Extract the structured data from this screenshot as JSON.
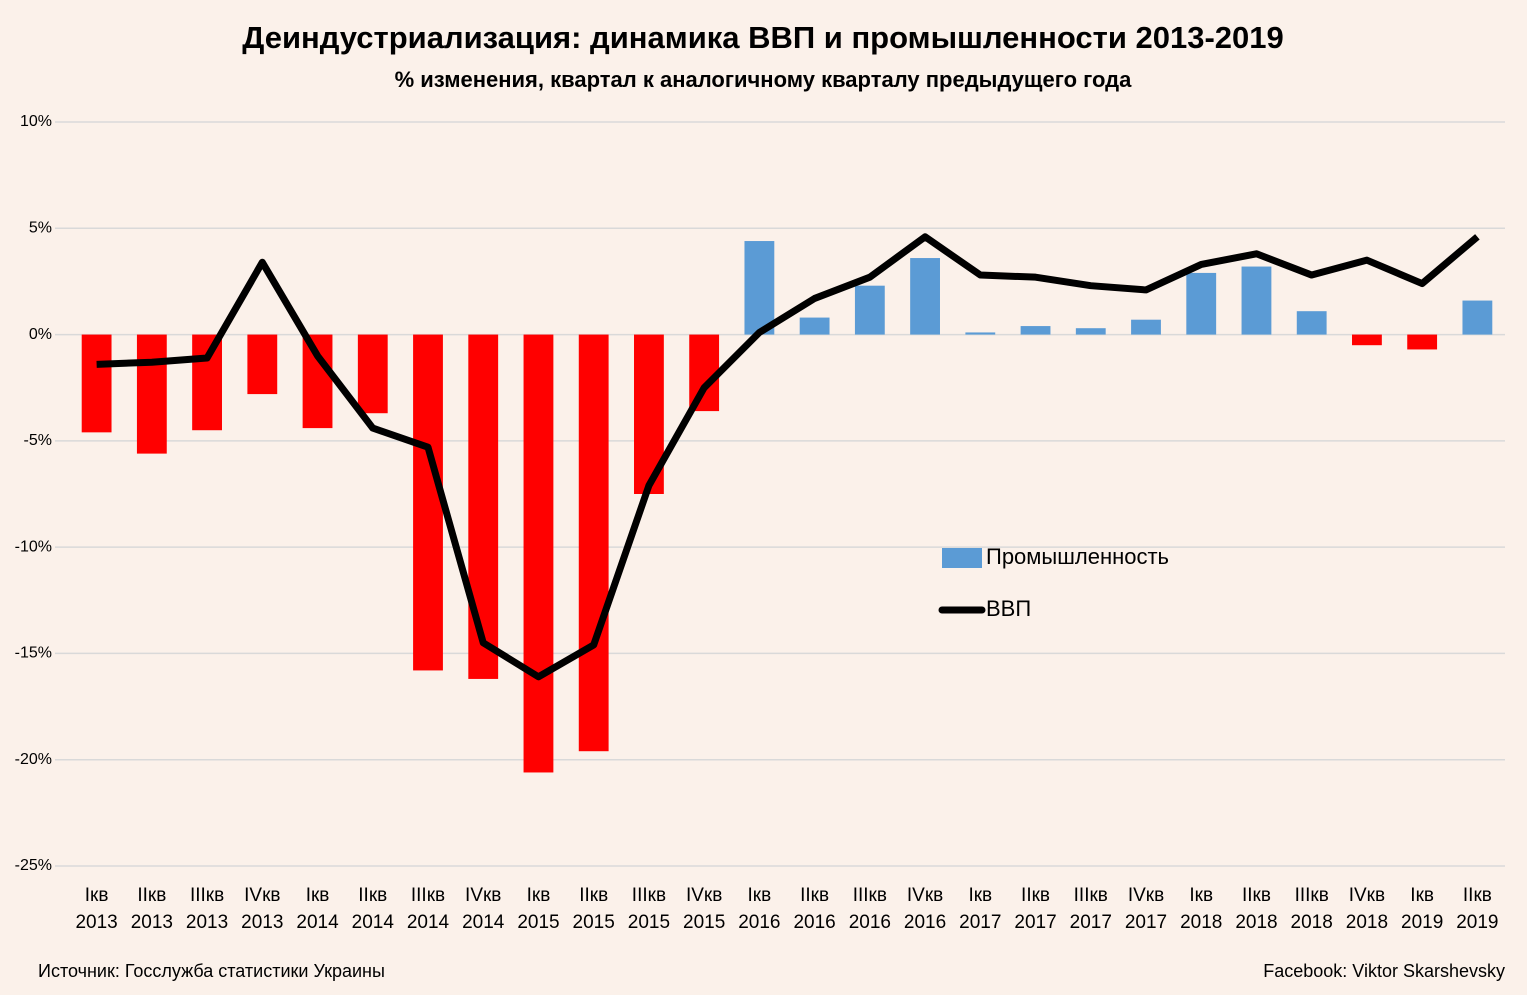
{
  "chart_data": {
    "type": "bar",
    "title": "Деиндустриализация: динамика ВВП и промышленности 2013-2019",
    "subtitle": "% изменения, квартал к аналогичному кварталу предыдущего года",
    "categories": [
      "Iкв 2013",
      "IIкв 2013",
      "IIIкв 2013",
      "IVкв 2013",
      "Iкв 2014",
      "IIкв 2014",
      "IIIкв 2014",
      "IVкв 2014",
      "Iкв 2015",
      "IIкв 2015",
      "IIIкв 2015",
      "IVкв 2015",
      "Iкв 2016",
      "IIкв 2016",
      "IIIкв 2016",
      "IVкв 2016",
      "Iкв 2017",
      "IIкв 2017",
      "IIIкв 2017",
      "IVкв 2017",
      "Iкв 2018",
      "IIкв 2018",
      "IIIкв 2018",
      "IVкв 2018",
      "Iкв 2019",
      "IIкв 2019"
    ],
    "series": [
      {
        "name": "Промышленность",
        "type": "bar",
        "color": "#5b9bd5",
        "negative_color": "#ff0000",
        "values": [
          -4.6,
          -5.6,
          -4.5,
          -2.8,
          -4.4,
          -3.7,
          -15.8,
          -16.2,
          -20.6,
          -19.6,
          -7.5,
          -3.6,
          4.4,
          0.8,
          2.3,
          3.6,
          0.1,
          0.4,
          0.3,
          0.7,
          2.9,
          3.2,
          1.1,
          -0.5,
          -0.7,
          1.6
        ]
      },
      {
        "name": "ВВП",
        "type": "line",
        "color": "#000000",
        "values": [
          -1.4,
          -1.3,
          -1.1,
          3.4,
          -1.0,
          -4.4,
          -5.3,
          -14.5,
          -16.1,
          -14.6,
          -7.1,
          -2.5,
          0.1,
          1.7,
          2.7,
          4.6,
          2.8,
          2.7,
          2.3,
          2.1,
          3.3,
          3.8,
          2.8,
          3.5,
          2.4,
          4.6
        ]
      }
    ],
    "ylim": [
      -25,
      10
    ],
    "yticks": [
      {
        "value": -25,
        "label": "-25%"
      },
      {
        "value": -20,
        "label": "-20%"
      },
      {
        "value": -15,
        "label": "-15%"
      },
      {
        "value": -10,
        "label": "-10%"
      },
      {
        "value": -5,
        "label": "-5%"
      },
      {
        "value": 0,
        "label": "0%"
      },
      {
        "value": 5,
        "label": "5%"
      },
      {
        "value": 10,
        "label": "10%"
      }
    ],
    "grid": true,
    "source": "Источник: Госслужба статистики Украины",
    "credit": "Facebook: Viktor Skarshevsky"
  }
}
